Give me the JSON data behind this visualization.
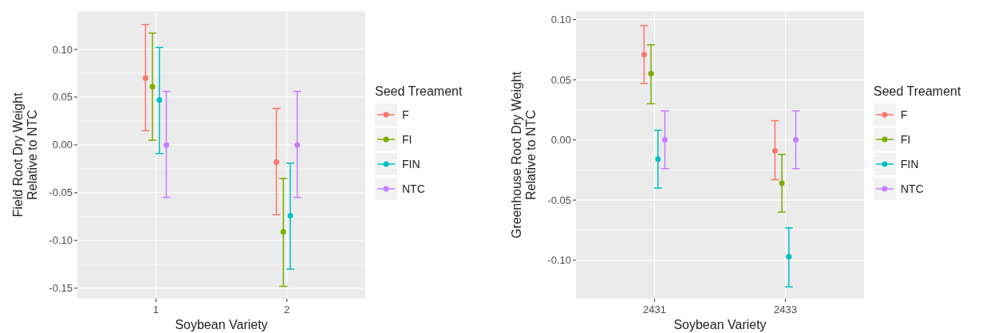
{
  "chart_data": [
    {
      "type": "scatter",
      "xlabel": "Soybean Variety",
      "ylabel": "Field Root Dry Weight\nRelative to NTC",
      "legend_title": "Seed Treament",
      "legend": "right",
      "grid": true,
      "marker": "circle",
      "categories": [
        "1",
        "2"
      ],
      "ylim": [
        -0.161,
        0.14
      ],
      "yticks": [
        {
          "value": 0.1,
          "label": "0.10"
        },
        {
          "value": 0.05,
          "label": "0.05"
        },
        {
          "value": 0,
          "label": "0.00"
        },
        {
          "value": -0.05,
          "label": "-0.05"
        },
        {
          "value": -0.1,
          "label": "-0.10"
        },
        {
          "value": -0.15,
          "label": "-0.15"
        }
      ],
      "series": [
        {
          "name": "F",
          "color": "#f8766d",
          "values": [
            0.07,
            -0.018
          ],
          "errors": [
            [
              0.015,
              0.126
            ],
            [
              -0.073,
              0.038
            ]
          ]
        },
        {
          "name": "FI",
          "color": "#7cae00",
          "values": [
            0.061,
            -0.091
          ],
          "errors": [
            [
              0.005,
              0.117
            ],
            [
              -0.148,
              -0.035
            ]
          ]
        },
        {
          "name": "FIN",
          "color": "#00bfc4",
          "values": [
            0.047,
            -0.074
          ],
          "errors": [
            [
              -0.009,
              0.102
            ],
            [
              -0.13,
              -0.019
            ]
          ]
        },
        {
          "name": "NTC",
          "color": "#c77cff",
          "values": [
            0,
            0
          ],
          "errors": [
            [
              -0.055,
              0.056
            ],
            [
              -0.055,
              0.056
            ]
          ]
        }
      ]
    },
    {
      "type": "scatter",
      "xlabel": "Soybean Variety",
      "ylabel": "Greenhouse Root Dry Weight\nRelative to NTC",
      "legend_title": "Seed Treament",
      "legend": "right",
      "grid": true,
      "marker": "circle",
      "categories": [
        "2431",
        "2433"
      ],
      "ylim": [
        -0.132,
        0.107
      ],
      "yticks": [
        {
          "value": 0.1,
          "label": "0.10"
        },
        {
          "value": 0.05,
          "label": "0.05"
        },
        {
          "value": 0,
          "label": "0.00"
        },
        {
          "value": -0.05,
          "label": "-0.05"
        },
        {
          "value": -0.1,
          "label": "-0.10"
        }
      ],
      "series": [
        {
          "name": "F",
          "color": "#f8766d",
          "values": [
            0.071,
            -0.009
          ],
          "errors": [
            [
              0.047,
              0.095
            ],
            [
              -0.033,
              0.016
            ]
          ]
        },
        {
          "name": "FI",
          "color": "#7cae00",
          "values": [
            0.055,
            -0.036
          ],
          "errors": [
            [
              0.03,
              0.079
            ],
            [
              -0.06,
              -0.012
            ]
          ]
        },
        {
          "name": "FIN",
          "color": "#00bfc4",
          "values": [
            -0.016,
            -0.097
          ],
          "errors": [
            [
              -0.04,
              0.008
            ],
            [
              -0.122,
              -0.073
            ]
          ]
        },
        {
          "name": "NTC",
          "color": "#c77cff",
          "values": [
            0,
            0
          ],
          "errors": [
            [
              -0.024,
              0.024
            ],
            [
              -0.024,
              0.024
            ]
          ]
        }
      ]
    }
  ]
}
